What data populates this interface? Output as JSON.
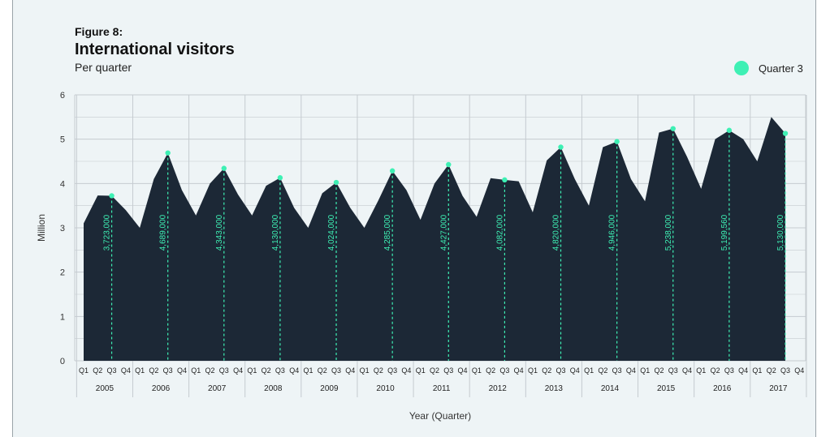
{
  "figure_label": "Figure 8:",
  "title": "International visitors",
  "subtitle": "Per quarter",
  "legend": {
    "label": "Quarter 3",
    "color": "#3ef0b4"
  },
  "colors": {
    "area": "#1c2836",
    "accent": "#3ef0b4",
    "grid": "#c5cbd0",
    "background": "#eef4f6"
  },
  "chart_data": {
    "type": "area",
    "title": "International visitors",
    "subtitle": "Per quarter",
    "xlabel": "Year (Quarter)",
    "ylabel": "Million",
    "ylim": [
      0,
      6
    ],
    "yticks": [
      0,
      1,
      2,
      3,
      4,
      5,
      6
    ],
    "years": [
      "2005",
      "2006",
      "2007",
      "2008",
      "2009",
      "2010",
      "2011",
      "2012",
      "2013",
      "2014",
      "2015",
      "2016",
      "2017"
    ],
    "quarters": [
      "Q1",
      "Q2",
      "Q3",
      "Q4"
    ],
    "grid": true,
    "legend_position": "top-right",
    "series": [
      {
        "values": [
          3.1,
          3.73,
          3.723,
          3.4,
          3.0,
          4.1,
          4.689,
          3.85,
          3.28,
          4.0,
          4.343,
          3.75,
          3.28,
          3.95,
          4.13,
          3.45,
          3.0,
          3.78,
          4.024,
          3.45,
          3.0,
          3.62,
          4.285,
          3.85,
          3.18,
          4.0,
          4.427,
          3.72,
          3.25,
          4.12,
          4.082,
          4.05,
          3.35,
          4.52,
          4.82,
          4.1,
          3.5,
          4.82,
          4.946,
          4.1,
          3.6,
          5.15,
          5.238,
          4.6,
          3.88,
          5.0,
          5.19956,
          5.0,
          4.5,
          5.5,
          5.13
        ]
      },
      {
        "name": "Quarter 3",
        "values": [
          3.723,
          4.689,
          4.343,
          4.13,
          4.024,
          4.285,
          4.427,
          4.082,
          4.82,
          4.946,
          5.238,
          5.19956,
          5.13
        ],
        "labels": [
          "3,723,000",
          "4,689,000",
          "4,343,000",
          "4,130,000",
          "4,024,000",
          "4,285,000",
          "4,427,000",
          "4,082,000",
          "4,820,000",
          "4,946,000",
          "5,238,000",
          "5,199,560",
          "5,130,000"
        ]
      }
    ]
  }
}
